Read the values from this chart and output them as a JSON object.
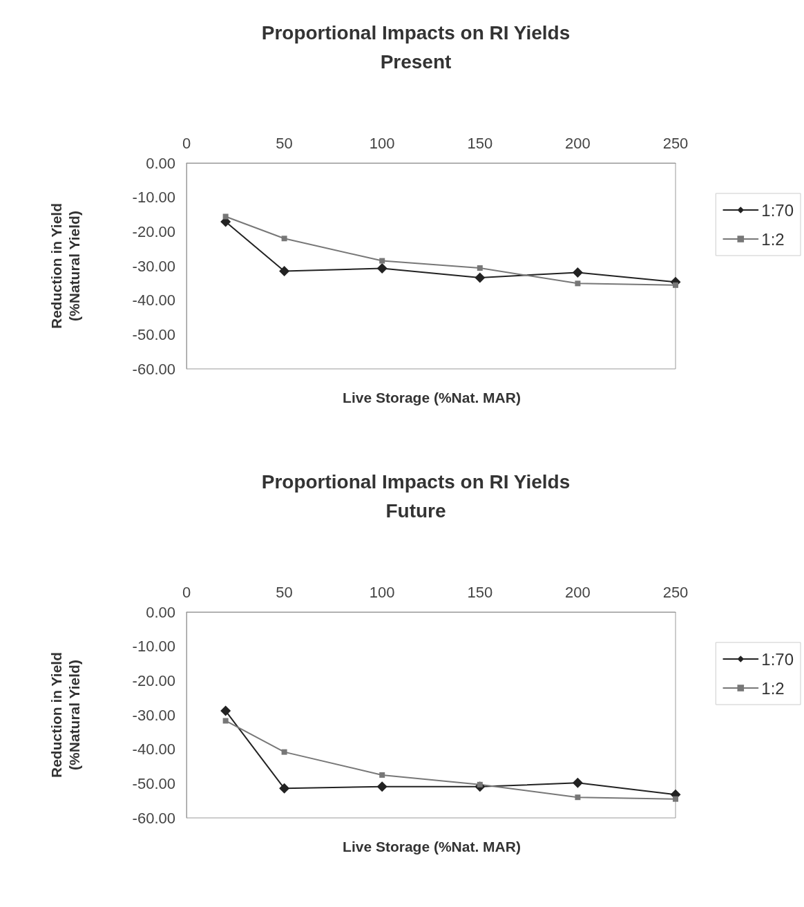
{
  "chart_data": [
    {
      "type": "line",
      "title": "Proportional Impacts on RI Yields",
      "subtitle": "Present",
      "xlabel": "Live Storage (%Nat. MAR)",
      "ylabel": "Reduction in Yield\n(%Natural Yield)",
      "x": [
        20,
        50,
        100,
        150,
        200,
        250
      ],
      "xlim": [
        0,
        250
      ],
      "xticks": [
        0,
        50,
        100,
        150,
        200,
        250
      ],
      "ylim": [
        -60,
        0
      ],
      "yticks": [
        {
          "value": 0,
          "label": "0.00"
        },
        {
          "value": -10,
          "label": "-10.00"
        },
        {
          "value": -20,
          "label": "-20.00"
        },
        {
          "value": -30,
          "label": "-30.00"
        },
        {
          "value": -40,
          "label": "-40.00"
        },
        {
          "value": -50,
          "label": "-50.00"
        },
        {
          "value": -60,
          "label": "-60.00"
        }
      ],
      "grid": false,
      "legend": "right",
      "line_style": "solid",
      "series": [
        {
          "name": "1:70",
          "color": "#222222",
          "marker": "diamond",
          "values": [
            -17.1,
            -31.5,
            -30.7,
            -33.4,
            -31.9,
            -34.7
          ]
        },
        {
          "name": "1:2",
          "color": "#777777",
          "marker": "square",
          "values": [
            -15.6,
            -22.0,
            -28.5,
            -30.6,
            -35.1,
            -35.6
          ]
        }
      ]
    },
    {
      "type": "line",
      "title": "Proportional Impacts on RI Yields",
      "subtitle": "Future",
      "xlabel": "Live Storage (%Nat. MAR)",
      "ylabel": "Reduction in Yield\n(%Natural Yield)",
      "x": [
        20,
        50,
        100,
        150,
        200,
        250
      ],
      "xlim": [
        0,
        250
      ],
      "xticks": [
        0,
        50,
        100,
        150,
        200,
        250
      ],
      "ylim": [
        -60,
        0
      ],
      "yticks": [
        {
          "value": 0,
          "label": "0.00"
        },
        {
          "value": -10,
          "label": "-10.00"
        },
        {
          "value": -20,
          "label": "-20.00"
        },
        {
          "value": -30,
          "label": "-30.00"
        },
        {
          "value": -40,
          "label": "-40.00"
        },
        {
          "value": -50,
          "label": "-50.00"
        },
        {
          "value": -60,
          "label": "-60.00"
        }
      ],
      "grid": false,
      "legend": "right",
      "line_style": "solid",
      "series": [
        {
          "name": "1:70",
          "color": "#222222",
          "marker": "diamond",
          "values": [
            -28.8,
            -51.4,
            -50.9,
            -50.9,
            -49.8,
            -53.2
          ]
        },
        {
          "name": "1:2",
          "color": "#777777",
          "marker": "square",
          "values": [
            -31.7,
            -40.8,
            -47.5,
            -50.3,
            -54.0,
            -54.5
          ]
        }
      ]
    }
  ]
}
